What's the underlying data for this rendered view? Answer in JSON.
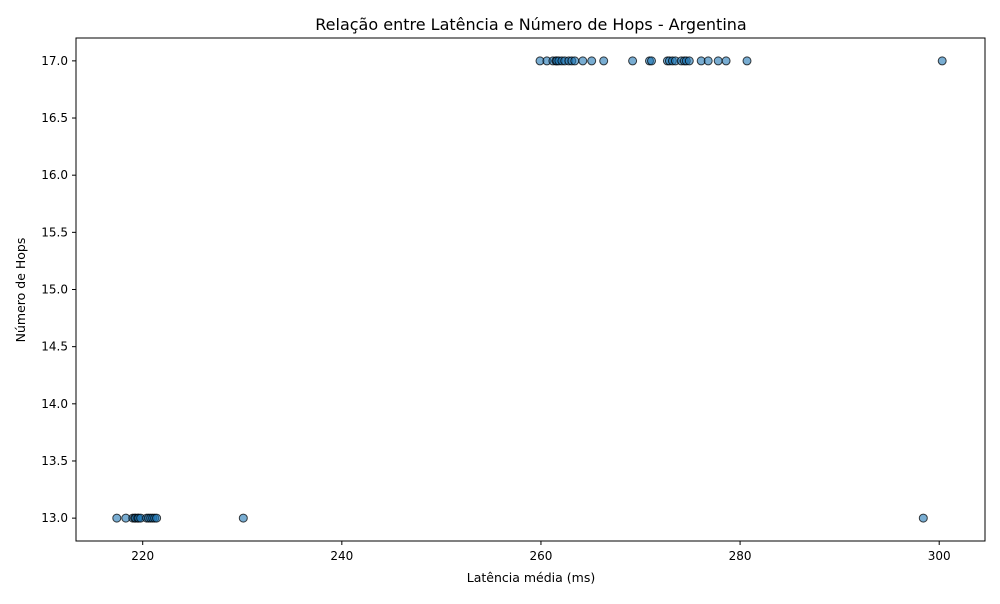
{
  "chart_data": {
    "type": "scatter",
    "title": "Relação entre Latência e Número de Hops - Argentina",
    "xlabel": "Latência média (ms)",
    "ylabel": "Número de Hops",
    "xlim": [
      213.3,
      304.6
    ],
    "ylim": [
      12.8,
      17.2
    ],
    "x_ticks": [
      "220",
      "240",
      "260",
      "280",
      "300"
    ],
    "y_ticks": [
      "13.0",
      "13.5",
      "14.0",
      "14.5",
      "15.0",
      "15.5",
      "16.0",
      "16.5",
      "17.0"
    ],
    "grid": false,
    "legend": "none",
    "marker_color": "#1f77b4",
    "marker_edge_color": "#000000",
    "marker_alpha": 0.6,
    "points": [
      {
        "x": 217.4,
        "y": 13
      },
      {
        "x": 218.3,
        "y": 13
      },
      {
        "x": 219.0,
        "y": 13
      },
      {
        "x": 219.2,
        "y": 13
      },
      {
        "x": 219.3,
        "y": 13
      },
      {
        "x": 219.5,
        "y": 13
      },
      {
        "x": 219.6,
        "y": 13
      },
      {
        "x": 219.8,
        "y": 13
      },
      {
        "x": 220.4,
        "y": 13
      },
      {
        "x": 220.6,
        "y": 13
      },
      {
        "x": 220.8,
        "y": 13
      },
      {
        "x": 221.0,
        "y": 13
      },
      {
        "x": 221.2,
        "y": 13
      },
      {
        "x": 221.4,
        "y": 13
      },
      {
        "x": 230.1,
        "y": 13
      },
      {
        "x": 298.4,
        "y": 13
      },
      {
        "x": 259.9,
        "y": 17
      },
      {
        "x": 260.6,
        "y": 17
      },
      {
        "x": 261.2,
        "y": 17
      },
      {
        "x": 261.5,
        "y": 17
      },
      {
        "x": 261.6,
        "y": 17
      },
      {
        "x": 261.8,
        "y": 17
      },
      {
        "x": 262.1,
        "y": 17
      },
      {
        "x": 262.4,
        "y": 17
      },
      {
        "x": 262.8,
        "y": 17
      },
      {
        "x": 263.1,
        "y": 17
      },
      {
        "x": 263.4,
        "y": 17
      },
      {
        "x": 264.2,
        "y": 17
      },
      {
        "x": 265.1,
        "y": 17
      },
      {
        "x": 266.3,
        "y": 17
      },
      {
        "x": 269.2,
        "y": 17
      },
      {
        "x": 270.9,
        "y": 17
      },
      {
        "x": 271.1,
        "y": 17
      },
      {
        "x": 272.7,
        "y": 17
      },
      {
        "x": 272.9,
        "y": 17
      },
      {
        "x": 273.2,
        "y": 17
      },
      {
        "x": 273.5,
        "y": 17
      },
      {
        "x": 274.1,
        "y": 17
      },
      {
        "x": 274.4,
        "y": 17
      },
      {
        "x": 274.6,
        "y": 17
      },
      {
        "x": 274.9,
        "y": 17
      },
      {
        "x": 276.1,
        "y": 17
      },
      {
        "x": 276.8,
        "y": 17
      },
      {
        "x": 277.8,
        "y": 17
      },
      {
        "x": 278.6,
        "y": 17
      },
      {
        "x": 280.7,
        "y": 17
      },
      {
        "x": 300.3,
        "y": 17
      }
    ]
  }
}
